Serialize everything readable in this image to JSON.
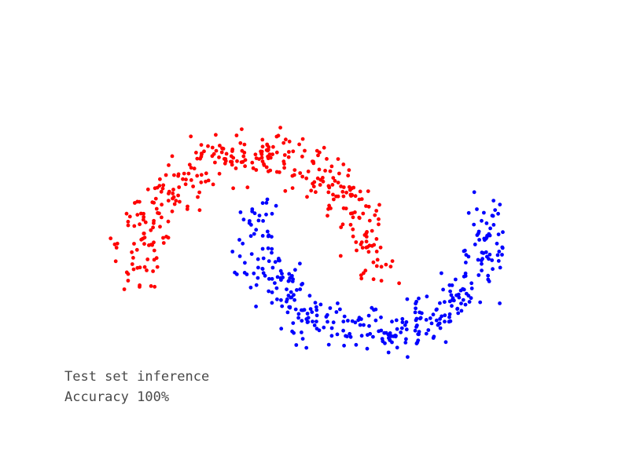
{
  "chart_data": {
    "type": "scatter",
    "title": "",
    "xlabel": "",
    "ylabel": "",
    "xlim": [
      -1.5,
      2.5
    ],
    "ylim": [
      -1.0,
      1.5
    ],
    "grid": false,
    "axes_visible": false,
    "annotations": [
      "Test set inference",
      "Accuracy 100%"
    ],
    "series": [
      {
        "color": "#ff0000",
        "moon": "upper",
        "count": 350,
        "noise": 0.1
      },
      {
        "color": "#0000ff",
        "moon": "lower",
        "count": 350,
        "noise": 0.1
      }
    ]
  }
}
